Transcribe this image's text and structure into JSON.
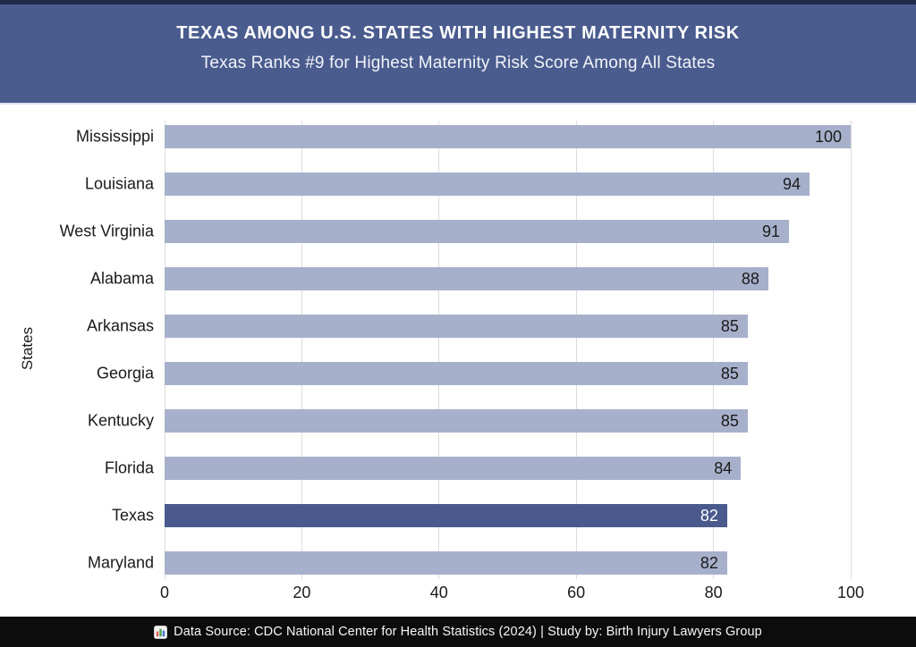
{
  "header": {
    "title": "TEXAS AMONG U.S. STATES WITH HIGHEST MATERNITY RISK",
    "subtitle": "Texas Ranks #9 for Highest Maternity Risk Score Among All States",
    "background": "#4a5c8e",
    "top_border_color": "#212a48"
  },
  "chart_data": {
    "type": "bar",
    "orientation": "horizontal",
    "categories": [
      "Mississippi",
      "Louisiana",
      "West Virginia",
      "Alabama",
      "Arkansas",
      "Georgia",
      "Kentucky",
      "Florida",
      "Texas",
      "Maryland"
    ],
    "values": [
      100,
      94,
      91,
      88,
      85,
      85,
      85,
      84,
      82,
      82
    ],
    "highlight_category": "Texas",
    "title": "",
    "xlabel": "",
    "ylabel": "States",
    "xlim": [
      0,
      100
    ],
    "xticks": [
      "0",
      "20",
      "40",
      "60",
      "80",
      "100"
    ],
    "xtick_values": [
      0,
      20,
      40,
      60,
      80,
      100
    ],
    "grid": "vertical",
    "legend": "none",
    "bar_color": "#a7b0cb",
    "highlight_bar_color": "#4a5a8c",
    "value_label_color": "#1a1a1a",
    "highlight_value_label_color": "#ffffff"
  },
  "footer": {
    "icon": "bar-chart",
    "text": "Data Source: CDC National Center for Health Statistics (2024) | Study by: Birth Injury Lawyers Group",
    "background": "#0c0c0c"
  }
}
